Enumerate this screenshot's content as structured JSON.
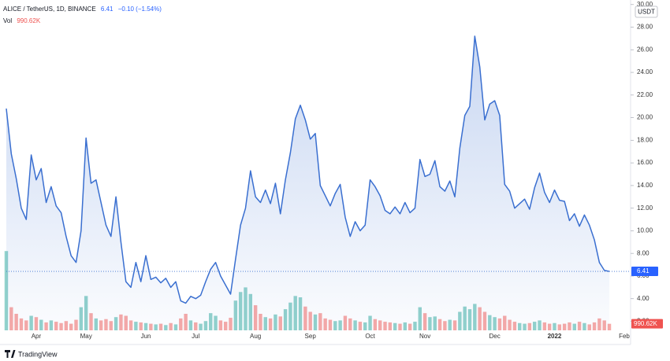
{
  "chart_data": {
    "type": "area",
    "title": "ALICE / TetherUS, 1D, BINANCE",
    "last_value": 6.41,
    "change_label": "−0.10 (−1.54%)",
    "volume_title": "Vol",
    "volume_label": "990.62K",
    "currency": "USDT",
    "branding": "TradingView",
    "color": "#3a6fd0",
    "up_color": "#26a69a",
    "down_color": "#ef5350",
    "grid": false,
    "ylim": [
      1.2,
      30.4
    ],
    "yticks": [
      {
        "value": 2,
        "label": "2.00"
      },
      {
        "value": 4,
        "label": "4.00"
      },
      {
        "value": 6,
        "label": "6.00"
      },
      {
        "value": 8,
        "label": "8.00"
      },
      {
        "value": 10,
        "label": "10.00"
      },
      {
        "value": 12,
        "label": "12.00"
      },
      {
        "value": 14,
        "label": "14.00"
      },
      {
        "value": 16,
        "label": "16.00"
      },
      {
        "value": 18,
        "label": "18.00"
      },
      {
        "value": 20,
        "label": "20.00"
      },
      {
        "value": 22,
        "label": "22.00"
      },
      {
        "value": 24,
        "label": "24.00"
      },
      {
        "value": 26,
        "label": "26.00"
      },
      {
        "value": 28,
        "label": "28.00"
      },
      {
        "value": 30,
        "label": "30.00"
      }
    ],
    "volume_ylim": [
      0,
      50000000
    ],
    "categories": [
      null,
      null,
      null,
      null,
      null,
      null,
      "Apr",
      null,
      null,
      null,
      null,
      null,
      null,
      null,
      null,
      null,
      "May",
      null,
      null,
      null,
      null,
      null,
      null,
      null,
      null,
      null,
      null,
      null,
      "Jun",
      null,
      null,
      null,
      null,
      null,
      null,
      null,
      null,
      null,
      "Jul",
      null,
      null,
      null,
      null,
      null,
      null,
      null,
      null,
      null,
      null,
      null,
      "Aug",
      null,
      null,
      null,
      null,
      null,
      null,
      null,
      null,
      null,
      null,
      "Sep",
      null,
      null,
      null,
      null,
      null,
      null,
      null,
      null,
      null,
      null,
      null,
      "Oct",
      null,
      null,
      null,
      null,
      null,
      null,
      null,
      null,
      null,
      null,
      "Nov",
      null,
      null,
      null,
      null,
      null,
      null,
      null,
      null,
      null,
      null,
      null,
      null,
      null,
      "Dec",
      null,
      null,
      null,
      null,
      null,
      null,
      null,
      null,
      null,
      null,
      null,
      "2022",
      null,
      null,
      null,
      null,
      null,
      null,
      null,
      null,
      null,
      null,
      null,
      null,
      null,
      "Feb"
    ],
    "series": [
      {
        "name": "ALICE / TetherUS",
        "values": [
          20.8,
          16.8,
          14.6,
          12.0,
          11.0,
          16.7,
          14.5,
          15.5,
          12.5,
          13.9,
          12.2,
          11.6,
          9.5,
          7.8,
          7.2,
          10,
          18.2,
          14.2,
          14.5,
          12.5,
          10.5,
          9.5,
          13,
          9,
          5.5,
          5.0,
          7.2,
          5.5,
          7.8,
          5.7,
          5.9,
          5.4,
          5.8,
          5.0,
          5.5,
          3.8,
          3.6,
          4.2,
          4.0,
          4.3,
          5.5,
          6.6,
          7.2,
          6.0,
          5.2,
          4.4,
          7.5,
          10.5,
          12,
          15.3,
          13,
          12.5,
          13.6,
          12.4,
          14.2,
          11.5,
          14.5,
          16.9,
          19.9,
          21.1,
          19.8,
          18.1,
          18.6,
          14.0,
          13.1,
          12.2,
          13.3,
          14.1,
          11.2,
          9.5,
          10.8,
          10.0,
          10.5,
          14.5,
          13.9,
          13.1,
          11.8,
          11.5,
          12.1,
          11.5,
          12.5,
          11.6,
          12.0,
          16.3,
          14.8,
          15.0,
          16.2,
          13.9,
          13.5,
          14.4,
          13.0,
          17.3,
          20.2,
          21.0,
          27.2,
          24.5,
          19.8,
          21.2,
          21.5,
          20.2,
          14.1,
          13.5,
          12.0,
          12.4,
          12.8,
          11.9,
          13.8,
          15.1,
          13.4,
          12.5,
          13.6,
          12.7,
          12.6,
          10.9,
          11.5,
          10.4,
          11.4,
          10.5,
          9.2,
          7.2,
          6.5,
          6.41,
          null,
          null,
          null
        ]
      },
      {
        "name": "Vol",
        "values": [
          12000000,
          3500000,
          2500000,
          1800000,
          1500000,
          2200000,
          2000000,
          1600000,
          1200000,
          1500000,
          1300000,
          1100000,
          1400000,
          1000000,
          1600000,
          3500000,
          5200000,
          2600000,
          1800000,
          1500000,
          1700000,
          1400000,
          2000000,
          2400000,
          2200000,
          1500000,
          1300000,
          1200000,
          1100000,
          1000000,
          900000,
          1000000,
          800000,
          1100000,
          900000,
          1800000,
          2500000,
          1500000,
          1200000,
          1000000,
          1400000,
          2600000,
          2200000,
          1500000,
          1300000,
          1900000,
          4500000,
          5800000,
          6500000,
          5500000,
          3800000,
          2500000,
          2000000,
          1800000,
          2400000,
          2100000,
          3200000,
          4200000,
          5200000,
          5000000,
          3600000,
          2800000,
          2400000,
          2600000,
          1800000,
          1600000,
          1400000,
          1500000,
          2200000,
          1800000,
          1500000,
          1300000,
          1200000,
          2200000,
          1700000,
          1500000,
          1300000,
          1200000,
          1100000,
          1000000,
          1200000,
          1000000,
          1300000,
          3500000,
          2600000,
          2000000,
          2100000,
          1700000,
          1400000,
          1600000,
          1500000,
          2800000,
          3600000,
          3200000,
          4000000,
          3500000,
          2800000,
          2300000,
          2000000,
          1800000,
          2200000,
          1600000,
          1300000,
          1100000,
          1000000,
          1100000,
          1300000,
          1500000,
          1200000,
          1000000,
          1100000,
          900000,
          1000000,
          1200000,
          1000000,
          1300000,
          1100000,
          900000,
          1200000,
          1800000,
          1500000,
          990620,
          null,
          null,
          null
        ]
      }
    ]
  }
}
